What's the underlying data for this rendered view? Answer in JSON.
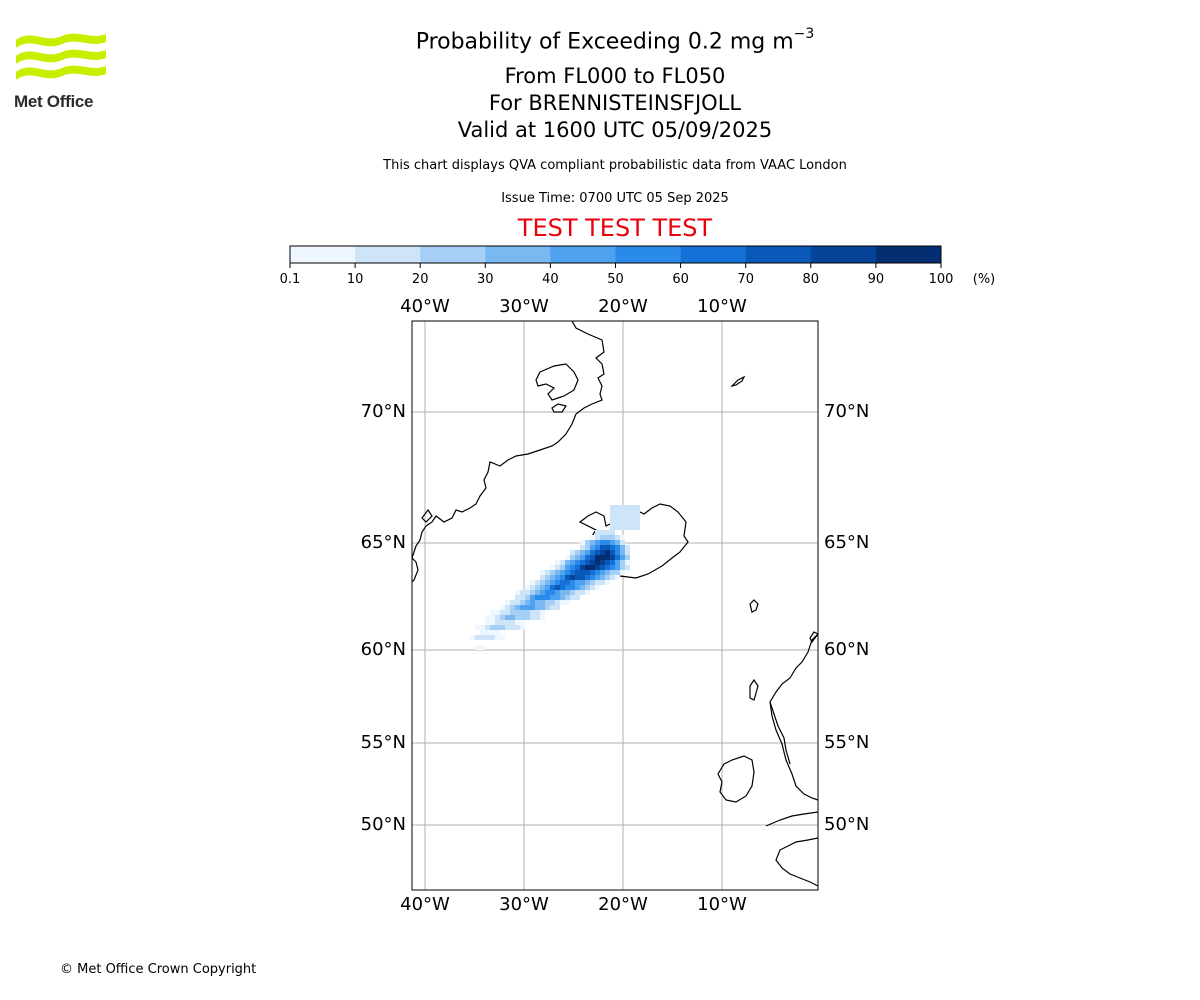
{
  "header": {
    "title_main": "Probability of Exceeding 0.2 mg m",
    "title_exp": "−3",
    "levels": "From FL000 to FL050",
    "volcano": "For BRENNISTEINSFJOLL",
    "valid": "Valid at 1600 UTC 05/09/2025",
    "subtitle": "This chart displays QVA compliant probabilistic data from VAAC London",
    "issue_time": "Issue Time: 0700 UTC 05 Sep 2025",
    "test_banner": "TEST TEST TEST"
  },
  "logo": {
    "text": "Met Office",
    "color": "#c6f000"
  },
  "colorbar": {
    "ticks": [
      "0.1",
      "10",
      "20",
      "30",
      "40",
      "50",
      "60",
      "70",
      "80",
      "90",
      "100"
    ],
    "unit": "(%)",
    "colors": [
      "#eef6ff",
      "#cde4f9",
      "#a6cff6",
      "#7ab8f2",
      "#4fa2f0",
      "#2a8aea",
      "#1570d8",
      "#0a58b8",
      "#06449a",
      "#032f72"
    ]
  },
  "map": {
    "lon_labels": [
      "40°W",
      "30°W",
      "20°W",
      "10°W"
    ],
    "lat_labels": [
      "70°N",
      "65°N",
      "60°N",
      "55°N",
      "50°N"
    ],
    "gridline_color": "#b0b0b0"
  },
  "footer": {
    "copyright": "© Met Office Crown Copyright"
  }
}
